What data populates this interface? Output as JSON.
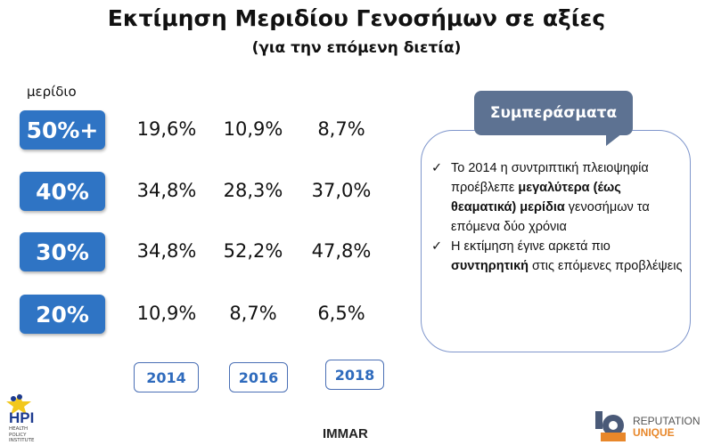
{
  "title": "Εκτίμηση Μεριδίου Γενοσήμων σε αξίες",
  "subtitle": "(για την επόμενη διετία)",
  "share_label": "μερίδιο",
  "years": [
    "2014",
    "2016",
    "2018"
  ],
  "rows": [
    {
      "share": "50%+",
      "values": [
        "19,6%",
        "10,9%",
        "8,7%"
      ]
    },
    {
      "share": "40%",
      "values": [
        "34,8%",
        "28,3%",
        "37,0%"
      ]
    },
    {
      "share": "30%",
      "values": [
        "34,8%",
        "52,2%",
        "47,8%"
      ]
    },
    {
      "share": "20%",
      "values": [
        "10,9%",
        "8,7%",
        "6,5%"
      ]
    }
  ],
  "conclusions": {
    "title": "Συμπεράσματα",
    "bullets": [
      {
        "p1": "Το 2014 η συντριπτική πλειοψηφία προέβλεπε ",
        "b1": "μεγαλύτερα (έως θεαματικά) μερίδια",
        "p2": " γενοσήμων τα επόμενα δύο χρόνια"
      },
      {
        "p1": "Η εκτίμηση έγινε αρκετά πιο ",
        "b1": "συντηρητική",
        "p2": " στις επόμενες προβλέψεις"
      }
    ]
  },
  "logos": {
    "hpi": "HPI",
    "hpi_sub": "HEALTH POLICY INSTITUTE",
    "immar": "IMMAR",
    "reputation": "REPUTATION",
    "unique": "UNIQUE"
  },
  "colors": {
    "share_box": "#2f74c4",
    "year_text": "#2f6bbd",
    "callout_tab": "#5d7292"
  }
}
